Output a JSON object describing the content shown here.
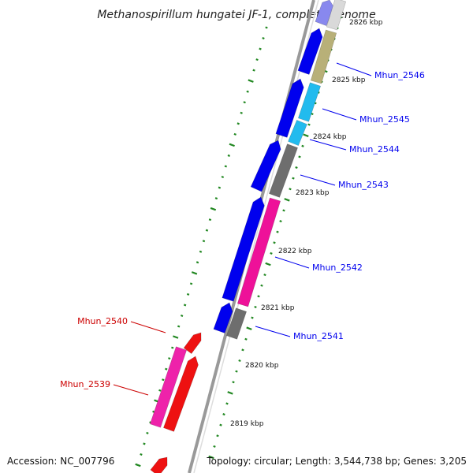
{
  "title": "Methanospirillum hungatei JF-1, complete genome",
  "footer": {
    "accession": "Accession: NC_007796",
    "topology": "Topology: circular; Length: 3,544,738 bp; Genes: 3,205"
  },
  "colors": {
    "forward": "#0000ee",
    "reverse_label": "#cc0000",
    "olive": "#b8b078",
    "cyan": "#22bbee",
    "gray": "#6e6e6e",
    "pink": "#ee1199",
    "red": "#ee1111",
    "magenta": "#ee22aa",
    "tick": "#228822",
    "backbone": "#999999"
  },
  "ticks": [
    {
      "label": "2826 kbp"
    },
    {
      "label": "2825 kbp"
    },
    {
      "label": "2824 kbp"
    },
    {
      "label": "2823 kbp"
    },
    {
      "label": "2822 kbp"
    },
    {
      "label": "2821 kbp"
    },
    {
      "label": "2820 kbp"
    },
    {
      "label": "2819 kbp"
    }
  ],
  "gene_labels": [
    {
      "text": "Mhun_2546",
      "strand": "forward"
    },
    {
      "text": "Mhun_2545",
      "strand": "forward"
    },
    {
      "text": "Mhun_2544",
      "strand": "forward"
    },
    {
      "text": "Mhun_2543",
      "strand": "forward"
    },
    {
      "text": "Mhun_2542",
      "strand": "forward"
    },
    {
      "text": "Mhun_2541",
      "strand": "forward"
    },
    {
      "text": "Mhun_2540",
      "strand": "reverse"
    },
    {
      "text": "Mhun_2539",
      "strand": "reverse"
    }
  ]
}
